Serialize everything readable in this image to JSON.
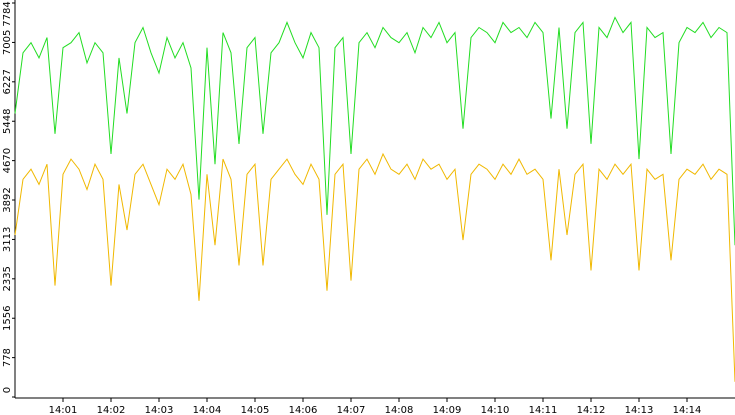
{
  "chart_data": {
    "type": "line",
    "categories": [
      null,
      null,
      null,
      null,
      null,
      null,
      "14:01",
      null,
      null,
      null,
      null,
      null,
      "14:02",
      null,
      null,
      null,
      null,
      null,
      "14:03",
      null,
      null,
      null,
      null,
      null,
      "14:04",
      null,
      null,
      null,
      null,
      null,
      "14:05",
      null,
      null,
      null,
      null,
      null,
      "14:06",
      null,
      null,
      null,
      null,
      null,
      "14:07",
      null,
      null,
      null,
      null,
      null,
      "14:08",
      null,
      null,
      null,
      null,
      null,
      "14:09",
      null,
      null,
      null,
      null,
      null,
      "14:10",
      null,
      null,
      null,
      null,
      null,
      "14:11",
      null,
      null,
      null,
      null,
      null,
      "14:12",
      null,
      null,
      null,
      null,
      null,
      "14:13",
      null,
      null,
      null,
      null,
      null,
      "14:14",
      null,
      null,
      null,
      null,
      null,
      null
    ],
    "series": [
      {
        "color": "#22dd22",
        "values": [
          5600,
          6800,
          7000,
          6700,
          7100,
          5200,
          6900,
          7000,
          7200,
          6600,
          7000,
          6800,
          4800,
          6700,
          5600,
          7000,
          7300,
          6800,
          6400,
          7100,
          6700,
          7000,
          6500,
          3900,
          6900,
          4600,
          7200,
          6800,
          5000,
          6900,
          7100,
          5200,
          6800,
          7000,
          7400,
          7000,
          6700,
          7200,
          6900,
          3600,
          6900,
          7100,
          4800,
          7000,
          7200,
          6900,
          7300,
          7100,
          7000,
          7200,
          6800,
          7300,
          7100,
          7400,
          7000,
          7200,
          5300,
          7100,
          7300,
          7200,
          7000,
          7400,
          7200,
          7300,
          7100,
          7400,
          7200,
          5500,
          7300,
          5300,
          7200,
          7400,
          5000,
          7300,
          7100,
          7500,
          7200,
          7400,
          4700,
          7300,
          7100,
          7200,
          4800,
          7000,
          7300,
          7200,
          7400,
          7100,
          7300,
          7200,
          3000
        ]
      },
      {
        "color": "#f0b800",
        "values": [
          3200,
          4300,
          4500,
          4200,
          4600,
          2200,
          4400,
          4700,
          4500,
          4100,
          4600,
          4300,
          2200,
          4200,
          3300,
          4400,
          4600,
          4200,
          3800,
          4500,
          4300,
          4600,
          4000,
          1900,
          4400,
          3000,
          4700,
          4300,
          2600,
          4400,
          4600,
          2600,
          4300,
          4500,
          4700,
          4400,
          4200,
          4600,
          4300,
          2100,
          4400,
          4600,
          2300,
          4500,
          4700,
          4400,
          4800,
          4500,
          4400,
          4600,
          4300,
          4700,
          4500,
          4600,
          4300,
          4500,
          3100,
          4400,
          4600,
          4500,
          4300,
          4600,
          4400,
          4700,
          4400,
          4500,
          4300,
          2700,
          4500,
          3200,
          4400,
          4600,
          2500,
          4500,
          4300,
          4600,
          4400,
          4600,
          2500,
          4500,
          4300,
          4400,
          2700,
          4300,
          4500,
          4400,
          4600,
          4300,
          4500,
          4400,
          300
        ]
      }
    ],
    "ylim": [
      0,
      7784
    ],
    "yticks": [
      0,
      778,
      1556,
      2335,
      3113,
      3892,
      4670,
      5448,
      6227,
      7005,
      7784
    ]
  }
}
